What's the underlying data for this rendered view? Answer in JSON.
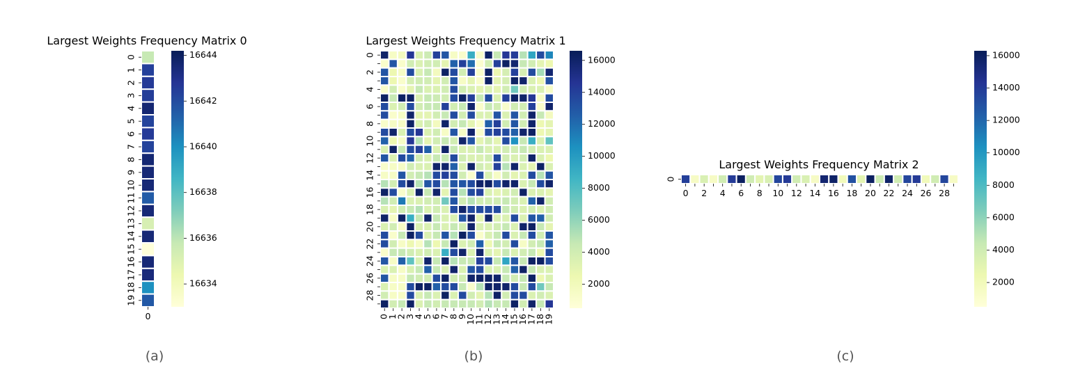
{
  "captions": [
    "(a)",
    "(b)",
    "(c)"
  ],
  "colorscale": {
    "name": "YlGnBu",
    "stops": [
      "#ffffd9",
      "#edf8b1",
      "#c7e9b4",
      "#7fcdbb",
      "#41b6c4",
      "#1d91c0",
      "#225ea8",
      "#253494",
      "#081d58"
    ]
  },
  "chart_data": [
    {
      "type": "heatmap",
      "title": "Largest Weights Frequency Matrix 0",
      "rows": 20,
      "cols": 1,
      "x_ticks": [
        "0"
      ],
      "y_ticks": [
        "0",
        "1",
        "2",
        "3",
        "4",
        "5",
        "6",
        "7",
        "8",
        "9",
        "10",
        "11",
        "12",
        "13",
        "14",
        "15",
        "16",
        "17",
        "18",
        "19"
      ],
      "values": [
        [
          16635.8
        ],
        [
          16642.4
        ],
        [
          16642.6
        ],
        [
          16642.5
        ],
        [
          16643.6
        ],
        [
          16642.3
        ],
        [
          16642.6
        ],
        [
          16642.3
        ],
        [
          16643.6
        ],
        [
          16643.5
        ],
        [
          16643.5
        ],
        [
          16641.5
        ],
        [
          16643.5
        ],
        [
          16635.2
        ],
        [
          16643.5
        ],
        [
          16633.0
        ],
        [
          16643.5
        ],
        [
          16643.4
        ],
        [
          16640.0
        ],
        [
          16641.6
        ]
      ],
      "vmin": 16633.0,
      "vmax": 16644.2,
      "colorbar_ticks": [
        16634,
        16636,
        16638,
        16640,
        16642,
        16644
      ]
    },
    {
      "type": "heatmap",
      "title": "Largest Weights Frequency Matrix 1",
      "rows": 30,
      "cols": 20,
      "x_ticks": [
        "0",
        "1",
        "2",
        "3",
        "4",
        "5",
        "6",
        "7",
        "8",
        "9",
        "10",
        "11",
        "12",
        "13",
        "14",
        "15",
        "16",
        "17",
        "18",
        "19"
      ],
      "y_ticks": [
        "0",
        "",
        "2",
        "",
        "4",
        "",
        "6",
        "",
        "8",
        "",
        "10",
        "",
        "12",
        "",
        "14",
        "",
        "16",
        "",
        "18",
        "",
        "20",
        "",
        "22",
        "",
        "24",
        "",
        "26",
        "",
        "28",
        ""
      ],
      "values": [
        [
          16000,
          1500,
          1800,
          14500,
          3500,
          4200,
          14000,
          13000,
          1500,
          1200,
          9000,
          1200,
          16200,
          4500,
          14500,
          14200,
          5000,
          9500,
          13500,
          11000
        ],
        [
          1200,
          13000,
          1200,
          4000,
          3500,
          4000,
          4000,
          3000,
          12500,
          14000,
          12000,
          1000,
          4000,
          14000,
          16200,
          15800,
          4500,
          4000,
          3000,
          2500
        ],
        [
          13000,
          2500,
          1500,
          13500,
          3500,
          4500,
          1800,
          16200,
          13500,
          4000,
          14000,
          1200,
          16200,
          2500,
          3800,
          14000,
          3800,
          13500,
          5500,
          15800
        ],
        [
          13000,
          2500,
          1200,
          3800,
          4000,
          4000,
          3000,
          4000,
          13000,
          1500,
          3000,
          1200,
          16200,
          3000,
          3800,
          16200,
          16000,
          3500,
          2500,
          13200
        ],
        [
          1200,
          4000,
          1200,
          3000,
          4500,
          3500,
          3500,
          4000,
          13500,
          4000,
          3500,
          3000,
          3500,
          3000,
          4000,
          7000,
          4000,
          3500,
          3500,
          1500
        ],
        [
          16200,
          4500,
          16200,
          16200,
          3500,
          4500,
          4200,
          4000,
          13500,
          16200,
          14000,
          4500,
          13500,
          3500,
          14000,
          16200,
          16000,
          14500,
          1500,
          13500
        ],
        [
          13500,
          3500,
          4000,
          13500,
          4000,
          4500,
          4500,
          14000,
          4000,
          4500,
          16000,
          1200,
          4500,
          4000,
          1200,
          4000,
          4000,
          14000,
          1200,
          16000
        ],
        [
          13500,
          1200,
          1500,
          16000,
          3000,
          3000,
          4000,
          4500,
          13500,
          4000,
          13500,
          3500,
          3500,
          13000,
          3500,
          13000,
          4000,
          16000,
          4500,
          1800
        ],
        [
          1200,
          1500,
          1500,
          16200,
          3500,
          4000,
          1800,
          16000,
          4000,
          4500,
          3000,
          1200,
          12500,
          14000,
          4000,
          13000,
          4000,
          16000,
          2500,
          3000
        ],
        [
          13500,
          16000,
          3500,
          13500,
          14500,
          3500,
          4000,
          1500,
          13000,
          1500,
          16000,
          1200,
          13500,
          14000,
          13500,
          12500,
          16000,
          16200,
          2500,
          3000
        ],
        [
          12500,
          2500,
          1500,
          14500,
          5000,
          3000,
          4000,
          4500,
          4000,
          16000,
          13000,
          3000,
          4000,
          3000,
          13500,
          10500,
          4500,
          9000,
          3500,
          7500
        ],
        [
          3500,
          16200,
          4500,
          13500,
          14000,
          12500,
          3500,
          16000,
          4500,
          3500,
          3500,
          4500,
          3500,
          3500,
          4000,
          4000,
          4500,
          4000,
          3500,
          3500
        ],
        [
          13000,
          3500,
          13500,
          12500,
          4000,
          3500,
          4500,
          4500,
          13500,
          4000,
          3500,
          3500,
          4000,
          13500,
          4000,
          3500,
          4000,
          16000,
          3500,
          2500
        ],
        [
          1200,
          1500,
          1500,
          4000,
          3500,
          3500,
          16000,
          16000,
          12500,
          3500,
          16000,
          4000,
          3500,
          14000,
          5000,
          16000,
          3500,
          3000,
          16200,
          3500
        ],
        [
          1500,
          1500,
          13000,
          4000,
          4500,
          5000,
          13500,
          14000,
          13500,
          4000,
          1200,
          13500,
          3500,
          1500,
          4000,
          3000,
          3500,
          13500,
          5000,
          13000
        ],
        [
          5000,
          4000,
          13500,
          16000,
          5000,
          13000,
          13500,
          5000,
          13000,
          13000,
          13500,
          16000,
          16200,
          13500,
          16000,
          16000,
          3500,
          4500,
          13500,
          16000
        ],
        [
          16200,
          13500,
          1200,
          3500,
          16200,
          4500,
          16000,
          3000,
          13500,
          5000,
          13500,
          14000,
          3500,
          3000,
          3500,
          4000,
          16200,
          3500,
          3500,
          3000
        ],
        [
          5000,
          4000,
          11500,
          3500,
          3500,
          4000,
          4000,
          7000,
          13000,
          4000,
          5000,
          4000,
          4000,
          4000,
          4500,
          4000,
          3500,
          12500,
          16000,
          4000
        ],
        [
          3500,
          3000,
          4000,
          4500,
          5000,
          3500,
          4000,
          3500,
          13500,
          16000,
          13500,
          13500,
          13500,
          13500,
          4500,
          4000,
          3500,
          4000,
          3500,
          4000
        ],
        [
          16000,
          1500,
          16200,
          9000,
          4500,
          16000,
          4500,
          3500,
          3500,
          13000,
          16000,
          3000,
          16000,
          3500,
          3500,
          13500,
          3500,
          13000,
          12500,
          4000
        ],
        [
          3500,
          4000,
          1500,
          16200,
          3500,
          3500,
          4500,
          3500,
          4500,
          4000,
          16000,
          3500,
          3500,
          4000,
          4500,
          3500,
          16000,
          16200,
          4500,
          3000
        ],
        [
          13500,
          1200,
          4500,
          16200,
          13500,
          3500,
          4500,
          13000,
          5000,
          16200,
          13500,
          1200,
          3500,
          4500,
          13500,
          3500,
          4500,
          13500,
          4000,
          13000
        ],
        [
          13500,
          4000,
          1500,
          2500,
          1500,
          5000,
          2500,
          4500,
          16200,
          3500,
          4000,
          12500,
          2500,
          4500,
          4000,
          13500,
          1500,
          4000,
          4500,
          12500
        ],
        [
          1200,
          4500,
          4500,
          4000,
          3500,
          4000,
          3500,
          9000,
          13500,
          16000,
          3500,
          16000,
          3500,
          3000,
          4500,
          3500,
          4000,
          4500,
          2500,
          13500
        ],
        [
          13000,
          1500,
          12500,
          7500,
          3500,
          16000,
          4500,
          16200,
          5000,
          4500,
          4500,
          14000,
          13500,
          4500,
          9500,
          13000,
          4500,
          16200,
          16200,
          13500
        ],
        [
          3500,
          3500,
          1500,
          3500,
          4500,
          12500,
          4500,
          3500,
          16000,
          3500,
          13000,
          13500,
          3500,
          3500,
          4500,
          12500,
          16200,
          4500,
          3500,
          3500
        ],
        [
          13000,
          1500,
          1500,
          4500,
          4000,
          4000,
          13500,
          16200,
          4000,
          4000,
          16000,
          16200,
          16200,
          16000,
          4500,
          4000,
          4500,
          16200,
          2500,
          3500
        ],
        [
          3500,
          1500,
          1500,
          13500,
          16200,
          16200,
          12500,
          13500,
          13500,
          4500,
          1200,
          5000,
          16200,
          16000,
          16000,
          13500,
          4500,
          13500,
          7000,
          4500
        ],
        [
          4000,
          1500,
          1500,
          13500,
          3500,
          4500,
          3500,
          16200,
          3500,
          13500,
          4000,
          3000,
          5000,
          16200,
          4000,
          13500,
          13500,
          3500,
          4000,
          3500
        ],
        [
          16200,
          4000,
          4500,
          16200,
          3500,
          4500,
          4000,
          4500,
          4500,
          4500,
          4500,
          4000,
          5000,
          4500,
          4500,
          16200,
          4000,
          16000,
          4500,
          14500
        ]
      ],
      "vmin": 500,
      "vmax": 16600,
      "colorbar_ticks": [
        2000,
        4000,
        6000,
        8000,
        10000,
        12000,
        14000,
        16000
      ]
    },
    {
      "type": "heatmap",
      "title": "Largest Weights Frequency Matrix 2",
      "rows": 1,
      "cols": 30,
      "x_ticks": [
        "0",
        "",
        "2",
        "",
        "4",
        "",
        "6",
        "",
        "8",
        "",
        "10",
        "",
        "12",
        "",
        "14",
        "",
        "16",
        "",
        "18",
        "",
        "20",
        "",
        "22",
        "",
        "24",
        "",
        "26",
        "",
        "28",
        ""
      ],
      "y_ticks": [
        "0"
      ],
      "values": [
        [
          13800,
          1500,
          3500,
          1500,
          4000,
          14000,
          16000,
          4000,
          3000,
          3500,
          13500,
          14000,
          4000,
          3500,
          1500,
          15500,
          15800,
          2000,
          13000,
          3000,
          16000,
          4200,
          15800,
          4000,
          13500,
          14000,
          2000,
          4000,
          13500,
          1500
        ]
      ],
      "vmin": 500,
      "vmax": 16300,
      "colorbar_ticks": [
        2000,
        4000,
        6000,
        8000,
        10000,
        12000,
        14000,
        16000
      ]
    }
  ]
}
